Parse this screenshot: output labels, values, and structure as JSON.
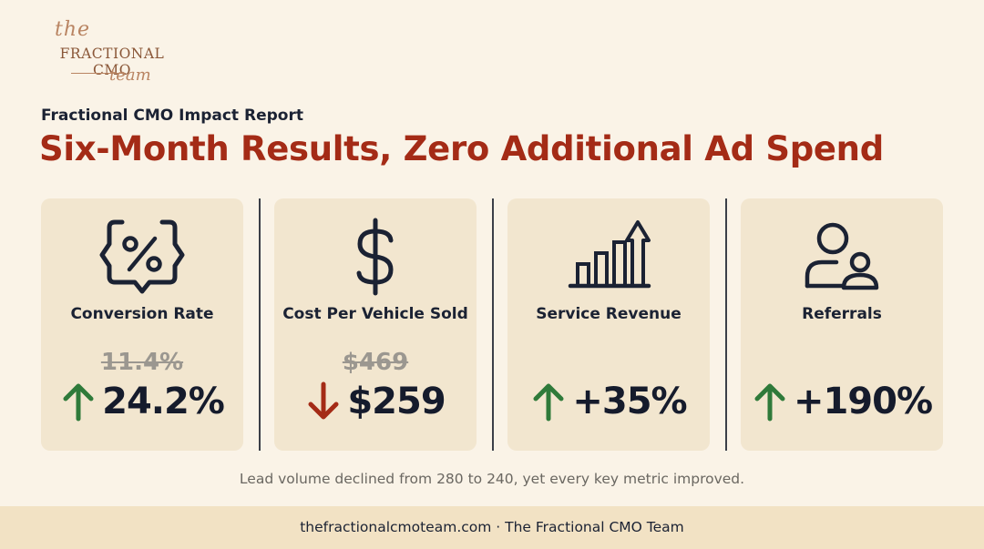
{
  "logo": {
    "the": "the",
    "main": "FRACTIONAL CMO",
    "team": "team"
  },
  "header": {
    "subtitle": "Fractional CMO Impact Report",
    "title": "Six-Month Results, Zero Additional Ad Spend"
  },
  "colors": {
    "accent": "#a42b16",
    "up": "#2f7a3a",
    "down": "#a42b16",
    "card": "#f2e6cf",
    "background": "#faf3e7"
  },
  "metrics": [
    {
      "label": "Conversion Rate",
      "icon": "percent-badge-icon",
      "old": "11.4%",
      "new": "24.2%",
      "direction": "up"
    },
    {
      "label": "Cost Per Vehicle Sold",
      "icon": "dollar-sign-icon",
      "old": "$469",
      "new": "$259",
      "direction": "down"
    },
    {
      "label": "Service Revenue",
      "icon": "bar-chart-growth-icon",
      "old": "",
      "new": "+35%",
      "direction": "up"
    },
    {
      "label": "Referrals",
      "icon": "users-icon",
      "old": "",
      "new": "+190%",
      "direction": "up"
    }
  ],
  "note": "Lead volume declined from 280 to 240, yet every key metric improved.",
  "footer": "thefractionalcmoteam.com · The Fractional CMO Team"
}
